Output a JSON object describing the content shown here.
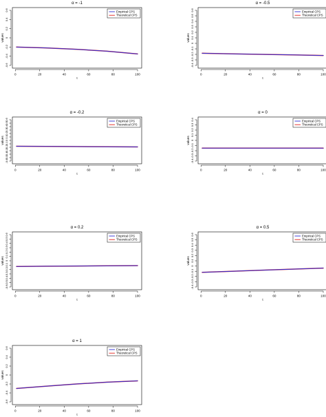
{
  "chart_data": [
    {
      "type": "line",
      "title": "α = -1",
      "xlabel": "t",
      "ylabel": "values",
      "xlim": [
        1,
        100
      ],
      "ylim": [
        -0.6,
        0.6
      ],
      "xticks": [
        "0",
        "20",
        "40",
        "60",
        "80",
        "100"
      ],
      "yticks": [
        "-0.6",
        "-0.4",
        "-0.2",
        "0",
        "0.2",
        "0.4",
        "0.6"
      ],
      "legend": "top-right",
      "series": [
        {
          "name": "Empirical CPS",
          "color": "#2b2bd6",
          "x": [
            1,
            25,
            50,
            75,
            100
          ],
          "values": [
            -0.2,
            -0.22,
            -0.25,
            -0.29,
            -0.35
          ]
        },
        {
          "name": "Theoretical CPS",
          "color": "#e0201b",
          "x": [
            1,
            25,
            50,
            75,
            100
          ],
          "values": [
            -0.2,
            -0.22,
            -0.25,
            -0.29,
            -0.35
          ]
        }
      ]
    },
    {
      "type": "line",
      "title": "α = -0.5",
      "xlabel": "t",
      "ylabel": "values",
      "xlim": [
        1,
        100
      ],
      "ylim": [
        -0.4,
        0.6
      ],
      "xticks": [
        "0",
        "20",
        "40",
        "60",
        "80",
        "100"
      ],
      "yticks": [
        "-0.4",
        "-0.3",
        "-0.2",
        "-0.1",
        "0",
        "0.1",
        "0.2",
        "0.3",
        "0.4",
        "0.5",
        "0.6"
      ],
      "legend": "top-right",
      "series": [
        {
          "name": "Empirical CPS",
          "color": "#2b2bd6",
          "x": [
            1,
            25,
            50,
            75,
            100
          ],
          "values": [
            -0.18,
            -0.19,
            -0.2,
            -0.21,
            -0.22
          ]
        },
        {
          "name": "Theoretical CPS",
          "color": "#e0201b",
          "x": [
            1,
            25,
            50,
            75,
            100
          ],
          "values": [
            -0.18,
            -0.19,
            -0.2,
            -0.21,
            -0.22
          ]
        }
      ]
    },
    {
      "type": "line",
      "title": "α = -0.2",
      "xlabel": "t",
      "ylabel": "values",
      "xlim": [
        1,
        100
      ],
      "ylim": [
        -0.6,
        0.6
      ],
      "xticks": [
        "0",
        "20",
        "40",
        "60",
        "80",
        "100"
      ],
      "yticks": [
        "-0.6",
        "-0.5",
        "-0.4",
        "-0.3",
        "-0.2",
        "-0.1",
        "0",
        "0.1",
        "0.2",
        "0.3",
        "0.4",
        "0.5",
        "0.6"
      ],
      "legend": "top-right",
      "series": [
        {
          "name": "Empirical CPS",
          "color": "#2b2bd6",
          "x": [
            1,
            25,
            50,
            75,
            100
          ],
          "values": [
            -0.17,
            -0.175,
            -0.18,
            -0.185,
            -0.19
          ]
        },
        {
          "name": "Theoretical CPS",
          "color": "#e0201b",
          "x": [
            1,
            25,
            50,
            75,
            100
          ],
          "values": [
            -0.17,
            -0.175,
            -0.18,
            -0.185,
            -0.19
          ]
        }
      ]
    },
    {
      "type": "line",
      "title": "α = 0",
      "xlabel": "t",
      "ylabel": "values",
      "xlim": [
        1,
        100
      ],
      "ylim": [
        -0.4,
        0.4
      ],
      "xticks": [
        "0",
        "20",
        "40",
        "60",
        "80",
        "100"
      ],
      "yticks": [
        "-0.4",
        "-0.3",
        "-0.2",
        "-0.1",
        "0",
        "0.1",
        "0.2",
        "0.3",
        "0.4"
      ],
      "legend": "top-right",
      "series": [
        {
          "name": "Empirical CPS",
          "color": "#2b2bd6",
          "x": [
            1,
            25,
            50,
            75,
            100
          ],
          "values": [
            -0.15,
            -0.15,
            -0.15,
            -0.15,
            -0.15
          ]
        },
        {
          "name": "Theoretical CPS",
          "color": "#e0201b",
          "x": [
            1,
            25,
            50,
            75,
            100
          ],
          "values": [
            -0.15,
            -0.15,
            -0.15,
            -0.15,
            -0.15
          ]
        }
      ]
    },
    {
      "type": "line",
      "title": "α = 0.2",
      "xlabel": "t",
      "ylabel": "values",
      "xlim": [
        1,
        100
      ],
      "ylim": [
        -0.6,
        0.6
      ],
      "xticks": [
        "0",
        "20",
        "40",
        "60",
        "80",
        "100"
      ],
      "yticks": [
        "-0.6",
        "-0.5",
        "-0.4",
        "-0.3",
        "-0.2",
        "-0.1",
        "0",
        "0.1",
        "0.2",
        "0.3",
        "0.4",
        "0.5",
        "0.6"
      ],
      "legend": "top-right",
      "series": [
        {
          "name": "Empirical CPS",
          "color": "#2b2bd6",
          "x": [
            1,
            25,
            50,
            75,
            100
          ],
          "values": [
            -0.13,
            -0.125,
            -0.12,
            -0.115,
            -0.11
          ]
        },
        {
          "name": "Theoretical CPS",
          "color": "#e0201b",
          "x": [
            1,
            25,
            50,
            75,
            100
          ],
          "values": [
            -0.13,
            -0.125,
            -0.12,
            -0.115,
            -0.11
          ]
        }
      ]
    },
    {
      "type": "line",
      "title": "α = 0.5",
      "xlabel": "t",
      "ylabel": "values",
      "xlim": [
        1,
        100
      ],
      "ylim": [
        -0.4,
        0.6
      ],
      "xticks": [
        "0",
        "20",
        "40",
        "60",
        "80",
        "100"
      ],
      "yticks": [
        "-0.4",
        "-0.3",
        "-0.2",
        "-0.1",
        "0",
        "0.1",
        "0.2",
        "0.3",
        "0.4",
        "0.5",
        "0.6"
      ],
      "legend": "top-right",
      "series": [
        {
          "name": "Empirical CPS",
          "color": "#2b2bd6",
          "x": [
            1,
            25,
            50,
            75,
            100
          ],
          "values": [
            -0.12,
            -0.1,
            -0.08,
            -0.06,
            -0.04
          ]
        },
        {
          "name": "Theoretical CPS",
          "color": "#e0201b",
          "x": [
            1,
            25,
            50,
            75,
            100
          ],
          "values": [
            -0.12,
            -0.1,
            -0.08,
            -0.06,
            -0.04
          ]
        }
      ]
    },
    {
      "type": "line",
      "title": "α = 1",
      "xlabel": "t",
      "ylabel": "values",
      "xlim": [
        1,
        100
      ],
      "ylim": [
        -0.6,
        0.6
      ],
      "xticks": [
        "0",
        "20",
        "40",
        "60",
        "80",
        "100"
      ],
      "yticks": [
        "-0.6",
        "-0.4",
        "-0.2",
        "0",
        "0.2",
        "0.4",
        "0.6"
      ],
      "legend": "top-right",
      "series": [
        {
          "name": "Empirical CPS",
          "color": "#2b2bd6",
          "x": [
            1,
            25,
            50,
            75,
            100
          ],
          "values": [
            -0.3,
            -0.25,
            -0.2,
            -0.16,
            -0.13
          ]
        },
        {
          "name": "Theoretical CPS",
          "color": "#e0201b",
          "x": [
            1,
            25,
            50,
            75,
            100
          ],
          "values": [
            -0.3,
            -0.25,
            -0.2,
            -0.16,
            -0.13
          ]
        }
      ]
    }
  ]
}
